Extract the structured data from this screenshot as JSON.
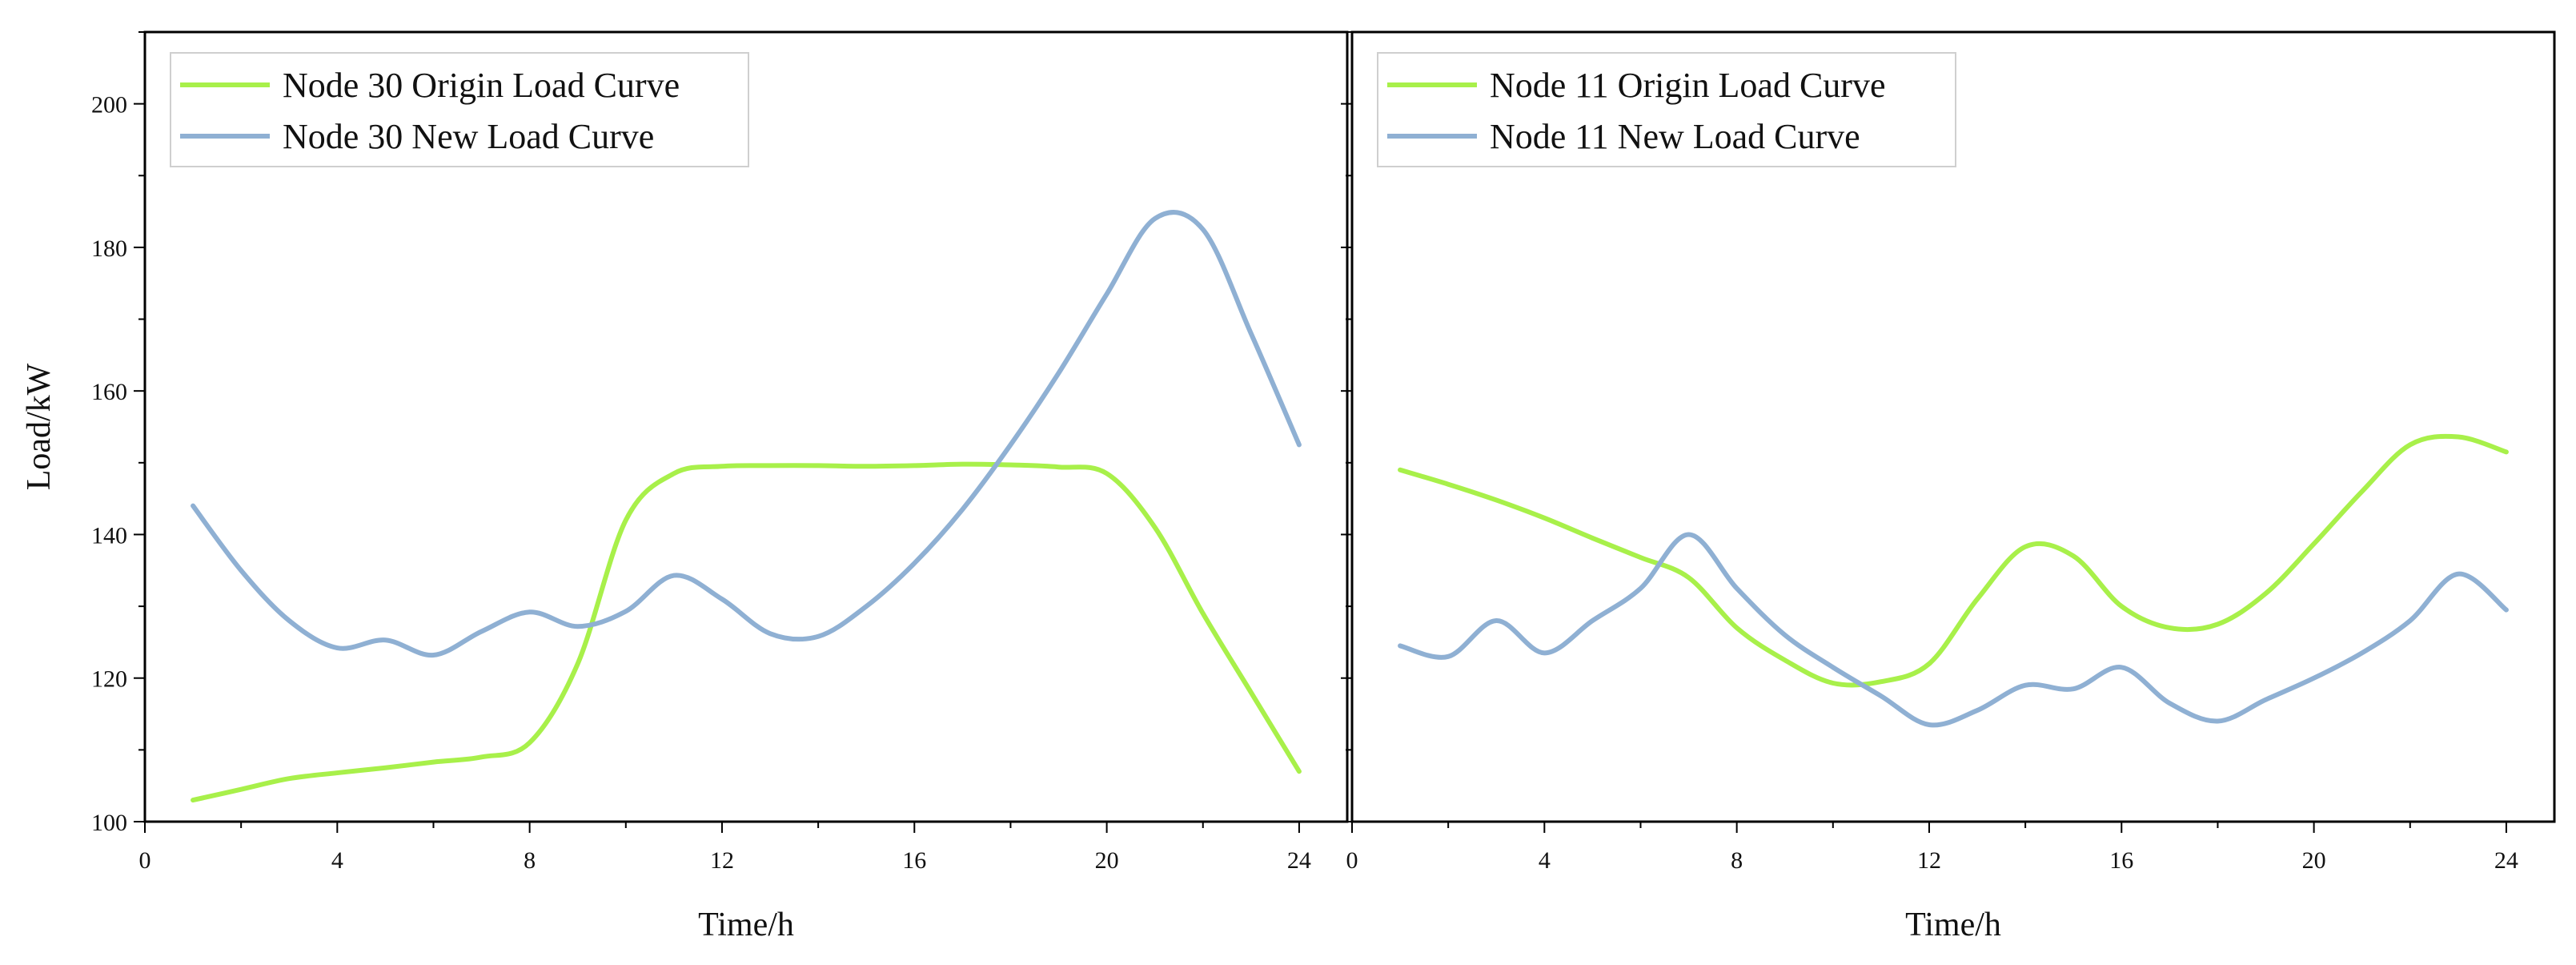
{
  "chart_data": [
    {
      "type": "line",
      "title": "",
      "xlabel": "Time/h",
      "ylabel": "Load/kW",
      "xlim": [
        0,
        25
      ],
      "ylim": [
        100,
        210
      ],
      "xticks": [
        0,
        4,
        8,
        12,
        16,
        20,
        24
      ],
      "yticks": [
        100,
        120,
        140,
        160,
        180,
        200
      ],
      "grid": false,
      "legend_position": "top-left",
      "x": [
        1,
        2,
        3,
        4,
        5,
        6,
        7,
        8,
        9,
        10,
        11,
        12,
        13,
        14,
        15,
        16,
        17,
        18,
        19,
        20,
        21,
        22,
        23,
        24
      ],
      "series": [
        {
          "name": "Node 30 Origin Load Curve",
          "color": "#a8f04a",
          "values": [
            103,
            104.5,
            106,
            106.8,
            107.5,
            108.3,
            109,
            111,
            122,
            142,
            148.5,
            149.5,
            149.6,
            149.6,
            149.5,
            149.6,
            149.8,
            149.7,
            149.4,
            148.5,
            141,
            129,
            118,
            107
          ]
        },
        {
          "name": "Node 30 New Load Curve",
          "color": "#8fb0d3",
          "values": [
            144,
            135,
            128,
            124.2,
            125.3,
            123.2,
            126.5,
            129.2,
            127.2,
            129.3,
            134.3,
            131,
            126.2,
            125.8,
            130,
            136,
            143.5,
            152.5,
            162.5,
            173.5,
            184,
            182.5,
            168,
            152.5
          ]
        }
      ]
    },
    {
      "type": "line",
      "title": "",
      "xlabel": "Time/h",
      "ylabel": "",
      "xlim": [
        0,
        25
      ],
      "ylim": [
        100,
        210
      ],
      "xticks": [
        0,
        4,
        8,
        12,
        16,
        20,
        24
      ],
      "yticks": [
        100,
        120,
        140,
        160,
        180,
        200
      ],
      "grid": false,
      "legend_position": "top-left",
      "x": [
        1,
        2,
        3,
        4,
        5,
        6,
        7,
        8,
        9,
        10,
        11,
        12,
        13,
        14,
        15,
        16,
        17,
        18,
        19,
        20,
        21,
        22,
        23,
        24
      ],
      "series": [
        {
          "name": "Node 11 Origin Load Curve",
          "color": "#a8f04a",
          "values": [
            149,
            147,
            144.8,
            142.3,
            139.5,
            136.8,
            134,
            127,
            122.5,
            119.3,
            119.5,
            122,
            131,
            138.3,
            137,
            130,
            127,
            127.5,
            131.8,
            138.7,
            146,
            152.5,
            153.6,
            151.5
          ]
        },
        {
          "name": "Node 11 New Load Curve",
          "color": "#8fb0d3",
          "values": [
            124.5,
            123,
            128,
            123.5,
            128,
            132.5,
            140,
            132.5,
            126,
            121.5,
            117.5,
            113.5,
            115.5,
            119,
            118.5,
            121.5,
            116.5,
            114,
            117,
            120,
            123.5,
            128,
            134.5,
            129.5
          ]
        }
      ]
    }
  ]
}
